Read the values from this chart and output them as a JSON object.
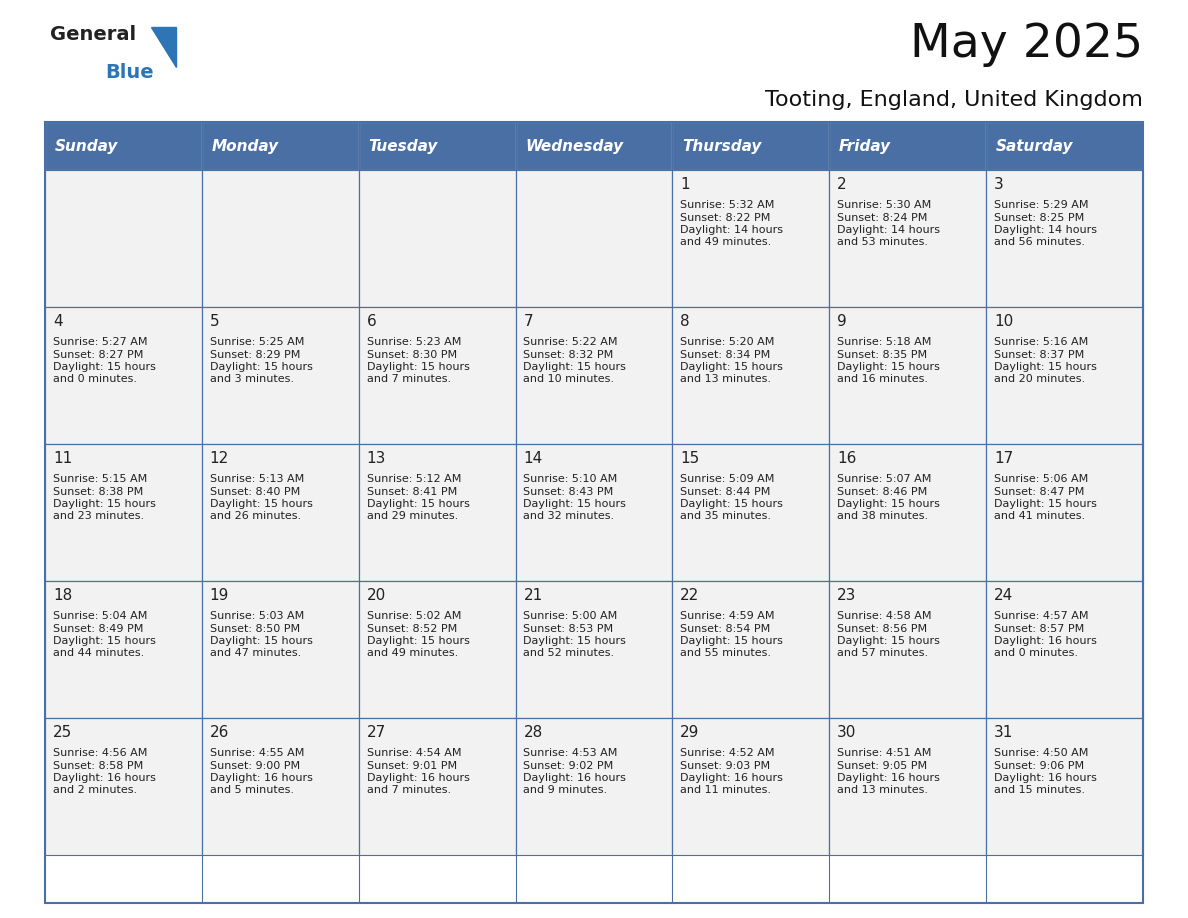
{
  "title": "May 2025",
  "subtitle": "Tooting, England, United Kingdom",
  "days_of_week": [
    "Sunday",
    "Monday",
    "Tuesday",
    "Wednesday",
    "Thursday",
    "Friday",
    "Saturday"
  ],
  "header_bg": "#4a6fa5",
  "header_text": "#FFFFFF",
  "cell_bg": "#f2f2f2",
  "cell_border": "#4a6fa5",
  "day_number_color": "#222222",
  "cell_text_color": "#222222",
  "title_color": "#111111",
  "subtitle_color": "#111111",
  "logo_general_color": "#222222",
  "logo_blue_color": "#2E75B6",
  "logo_triangle_color": "#2E75B6",
  "weeks": [
    [
      {
        "day": null,
        "text": ""
      },
      {
        "day": null,
        "text": ""
      },
      {
        "day": null,
        "text": ""
      },
      {
        "day": null,
        "text": ""
      },
      {
        "day": 1,
        "text": "Sunrise: 5:32 AM\nSunset: 8:22 PM\nDaylight: 14 hours\nand 49 minutes."
      },
      {
        "day": 2,
        "text": "Sunrise: 5:30 AM\nSunset: 8:24 PM\nDaylight: 14 hours\nand 53 minutes."
      },
      {
        "day": 3,
        "text": "Sunrise: 5:29 AM\nSunset: 8:25 PM\nDaylight: 14 hours\nand 56 minutes."
      }
    ],
    [
      {
        "day": 4,
        "text": "Sunrise: 5:27 AM\nSunset: 8:27 PM\nDaylight: 15 hours\nand 0 minutes."
      },
      {
        "day": 5,
        "text": "Sunrise: 5:25 AM\nSunset: 8:29 PM\nDaylight: 15 hours\nand 3 minutes."
      },
      {
        "day": 6,
        "text": "Sunrise: 5:23 AM\nSunset: 8:30 PM\nDaylight: 15 hours\nand 7 minutes."
      },
      {
        "day": 7,
        "text": "Sunrise: 5:22 AM\nSunset: 8:32 PM\nDaylight: 15 hours\nand 10 minutes."
      },
      {
        "day": 8,
        "text": "Sunrise: 5:20 AM\nSunset: 8:34 PM\nDaylight: 15 hours\nand 13 minutes."
      },
      {
        "day": 9,
        "text": "Sunrise: 5:18 AM\nSunset: 8:35 PM\nDaylight: 15 hours\nand 16 minutes."
      },
      {
        "day": 10,
        "text": "Sunrise: 5:16 AM\nSunset: 8:37 PM\nDaylight: 15 hours\nand 20 minutes."
      }
    ],
    [
      {
        "day": 11,
        "text": "Sunrise: 5:15 AM\nSunset: 8:38 PM\nDaylight: 15 hours\nand 23 minutes."
      },
      {
        "day": 12,
        "text": "Sunrise: 5:13 AM\nSunset: 8:40 PM\nDaylight: 15 hours\nand 26 minutes."
      },
      {
        "day": 13,
        "text": "Sunrise: 5:12 AM\nSunset: 8:41 PM\nDaylight: 15 hours\nand 29 minutes."
      },
      {
        "day": 14,
        "text": "Sunrise: 5:10 AM\nSunset: 8:43 PM\nDaylight: 15 hours\nand 32 minutes."
      },
      {
        "day": 15,
        "text": "Sunrise: 5:09 AM\nSunset: 8:44 PM\nDaylight: 15 hours\nand 35 minutes."
      },
      {
        "day": 16,
        "text": "Sunrise: 5:07 AM\nSunset: 8:46 PM\nDaylight: 15 hours\nand 38 minutes."
      },
      {
        "day": 17,
        "text": "Sunrise: 5:06 AM\nSunset: 8:47 PM\nDaylight: 15 hours\nand 41 minutes."
      }
    ],
    [
      {
        "day": 18,
        "text": "Sunrise: 5:04 AM\nSunset: 8:49 PM\nDaylight: 15 hours\nand 44 minutes."
      },
      {
        "day": 19,
        "text": "Sunrise: 5:03 AM\nSunset: 8:50 PM\nDaylight: 15 hours\nand 47 minutes."
      },
      {
        "day": 20,
        "text": "Sunrise: 5:02 AM\nSunset: 8:52 PM\nDaylight: 15 hours\nand 49 minutes."
      },
      {
        "day": 21,
        "text": "Sunrise: 5:00 AM\nSunset: 8:53 PM\nDaylight: 15 hours\nand 52 minutes."
      },
      {
        "day": 22,
        "text": "Sunrise: 4:59 AM\nSunset: 8:54 PM\nDaylight: 15 hours\nand 55 minutes."
      },
      {
        "day": 23,
        "text": "Sunrise: 4:58 AM\nSunset: 8:56 PM\nDaylight: 15 hours\nand 57 minutes."
      },
      {
        "day": 24,
        "text": "Sunrise: 4:57 AM\nSunset: 8:57 PM\nDaylight: 16 hours\nand 0 minutes."
      }
    ],
    [
      {
        "day": 25,
        "text": "Sunrise: 4:56 AM\nSunset: 8:58 PM\nDaylight: 16 hours\nand 2 minutes."
      },
      {
        "day": 26,
        "text": "Sunrise: 4:55 AM\nSunset: 9:00 PM\nDaylight: 16 hours\nand 5 minutes."
      },
      {
        "day": 27,
        "text": "Sunrise: 4:54 AM\nSunset: 9:01 PM\nDaylight: 16 hours\nand 7 minutes."
      },
      {
        "day": 28,
        "text": "Sunrise: 4:53 AM\nSunset: 9:02 PM\nDaylight: 16 hours\nand 9 minutes."
      },
      {
        "day": 29,
        "text": "Sunrise: 4:52 AM\nSunset: 9:03 PM\nDaylight: 16 hours\nand 11 minutes."
      },
      {
        "day": 30,
        "text": "Sunrise: 4:51 AM\nSunset: 9:05 PM\nDaylight: 16 hours\nand 13 minutes."
      },
      {
        "day": 31,
        "text": "Sunrise: 4:50 AM\nSunset: 9:06 PM\nDaylight: 16 hours\nand 15 minutes."
      }
    ]
  ]
}
